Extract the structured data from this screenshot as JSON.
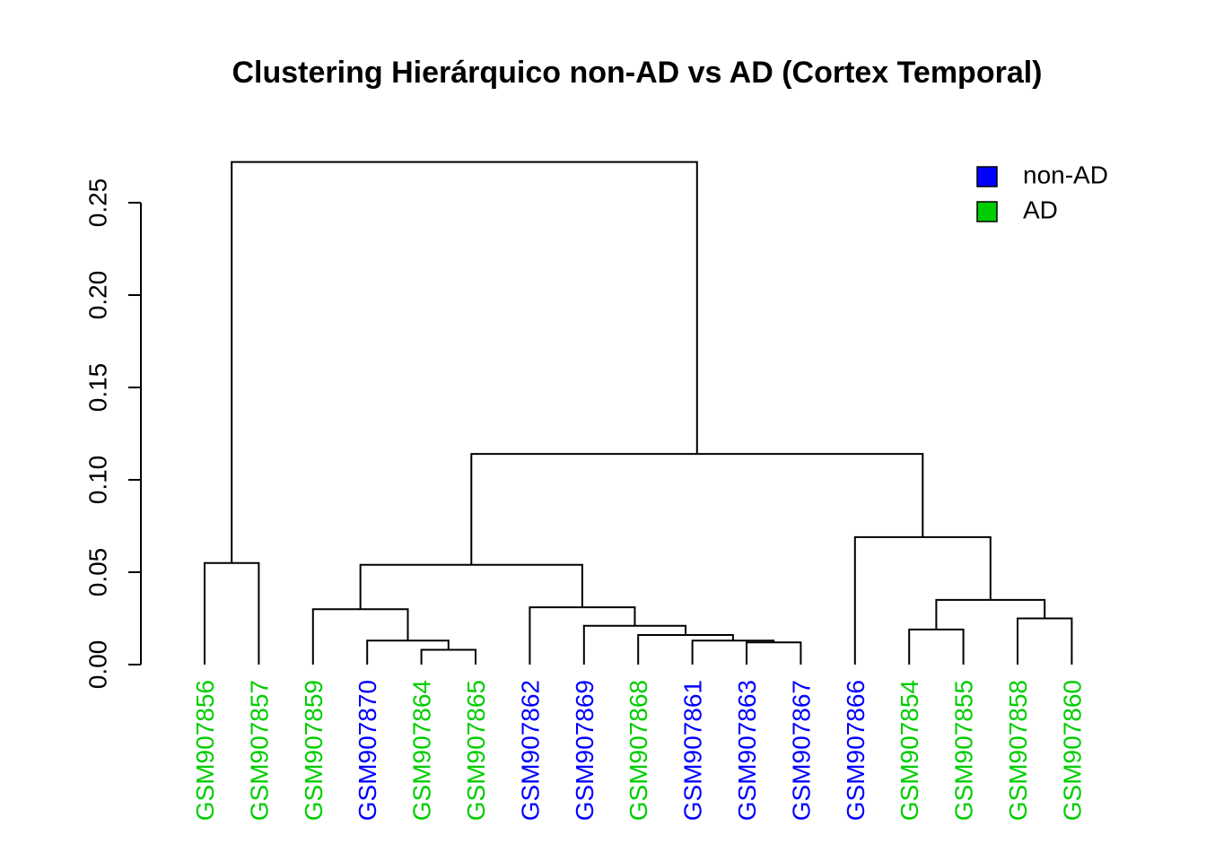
{
  "chart_data": {
    "type": "dendrogram",
    "title": "Clustering Hierárquico non-AD vs AD (Cortex Temporal)",
    "ylim": [
      0,
      0.27
    ],
    "yticks": [
      "0.00",
      "0.05",
      "0.10",
      "0.15",
      "0.20",
      "0.25"
    ],
    "grid": false,
    "legend_position": "top-right",
    "colors": {
      "non-AD": "#0000FF",
      "AD": "#00CD00"
    },
    "legend": [
      {
        "label": "non-AD",
        "group": "non-AD"
      },
      {
        "label": "AD",
        "group": "AD"
      }
    ],
    "leaves": [
      {
        "label": "GSM907856",
        "group": "AD"
      },
      {
        "label": "GSM907857",
        "group": "AD"
      },
      {
        "label": "GSM907859",
        "group": "AD"
      },
      {
        "label": "GSM907870",
        "group": "non-AD"
      },
      {
        "label": "GSM907864",
        "group": "AD"
      },
      {
        "label": "GSM907865",
        "group": "AD"
      },
      {
        "label": "GSM907862",
        "group": "non-AD"
      },
      {
        "label": "GSM907869",
        "group": "non-AD"
      },
      {
        "label": "GSM907868",
        "group": "AD"
      },
      {
        "label": "GSM907861",
        "group": "non-AD"
      },
      {
        "label": "GSM907863",
        "group": "non-AD"
      },
      {
        "label": "GSM907867",
        "group": "non-AD"
      },
      {
        "label": "GSM907866",
        "group": "non-AD"
      },
      {
        "label": "GSM907854",
        "group": "AD"
      },
      {
        "label": "GSM907855",
        "group": "AD"
      },
      {
        "label": "GSM907858",
        "group": "AD"
      },
      {
        "label": "GSM907860",
        "group": "AD"
      }
    ],
    "merges": [
      {
        "id": "m1",
        "left": "GSM907856",
        "right": "GSM907857",
        "height": 0.055
      },
      {
        "id": "m2",
        "left": "GSM907864",
        "right": "GSM907865",
        "height": 0.008
      },
      {
        "id": "m3",
        "left": "GSM907870",
        "right": "m2",
        "height": 0.013
      },
      {
        "id": "m4",
        "left": "GSM907859",
        "right": "m3",
        "height": 0.03
      },
      {
        "id": "m5",
        "left": "GSM907863",
        "right": "GSM907867",
        "height": 0.012
      },
      {
        "id": "m6",
        "left": "GSM907861",
        "right": "m5",
        "height": 0.013
      },
      {
        "id": "m7",
        "left": "GSM907868",
        "right": "m6",
        "height": 0.016
      },
      {
        "id": "m8",
        "left": "GSM907869",
        "right": "m7",
        "height": 0.021
      },
      {
        "id": "m9",
        "left": "GSM907862",
        "right": "m8",
        "height": 0.031
      },
      {
        "id": "m10",
        "left": "m4",
        "right": "m9",
        "height": 0.054
      },
      {
        "id": "m11",
        "left": "GSM907854",
        "right": "GSM907855",
        "height": 0.019
      },
      {
        "id": "m12",
        "left": "GSM907858",
        "right": "GSM907860",
        "height": 0.025
      },
      {
        "id": "m13",
        "left": "m11",
        "right": "m12",
        "height": 0.035
      },
      {
        "id": "m14",
        "left": "GSM907866",
        "right": "m13",
        "height": 0.069
      },
      {
        "id": "m15",
        "left": "m10",
        "right": "m14",
        "height": 0.114
      },
      {
        "id": "m16",
        "left": "m1",
        "right": "m15",
        "height": 0.272
      }
    ]
  }
}
